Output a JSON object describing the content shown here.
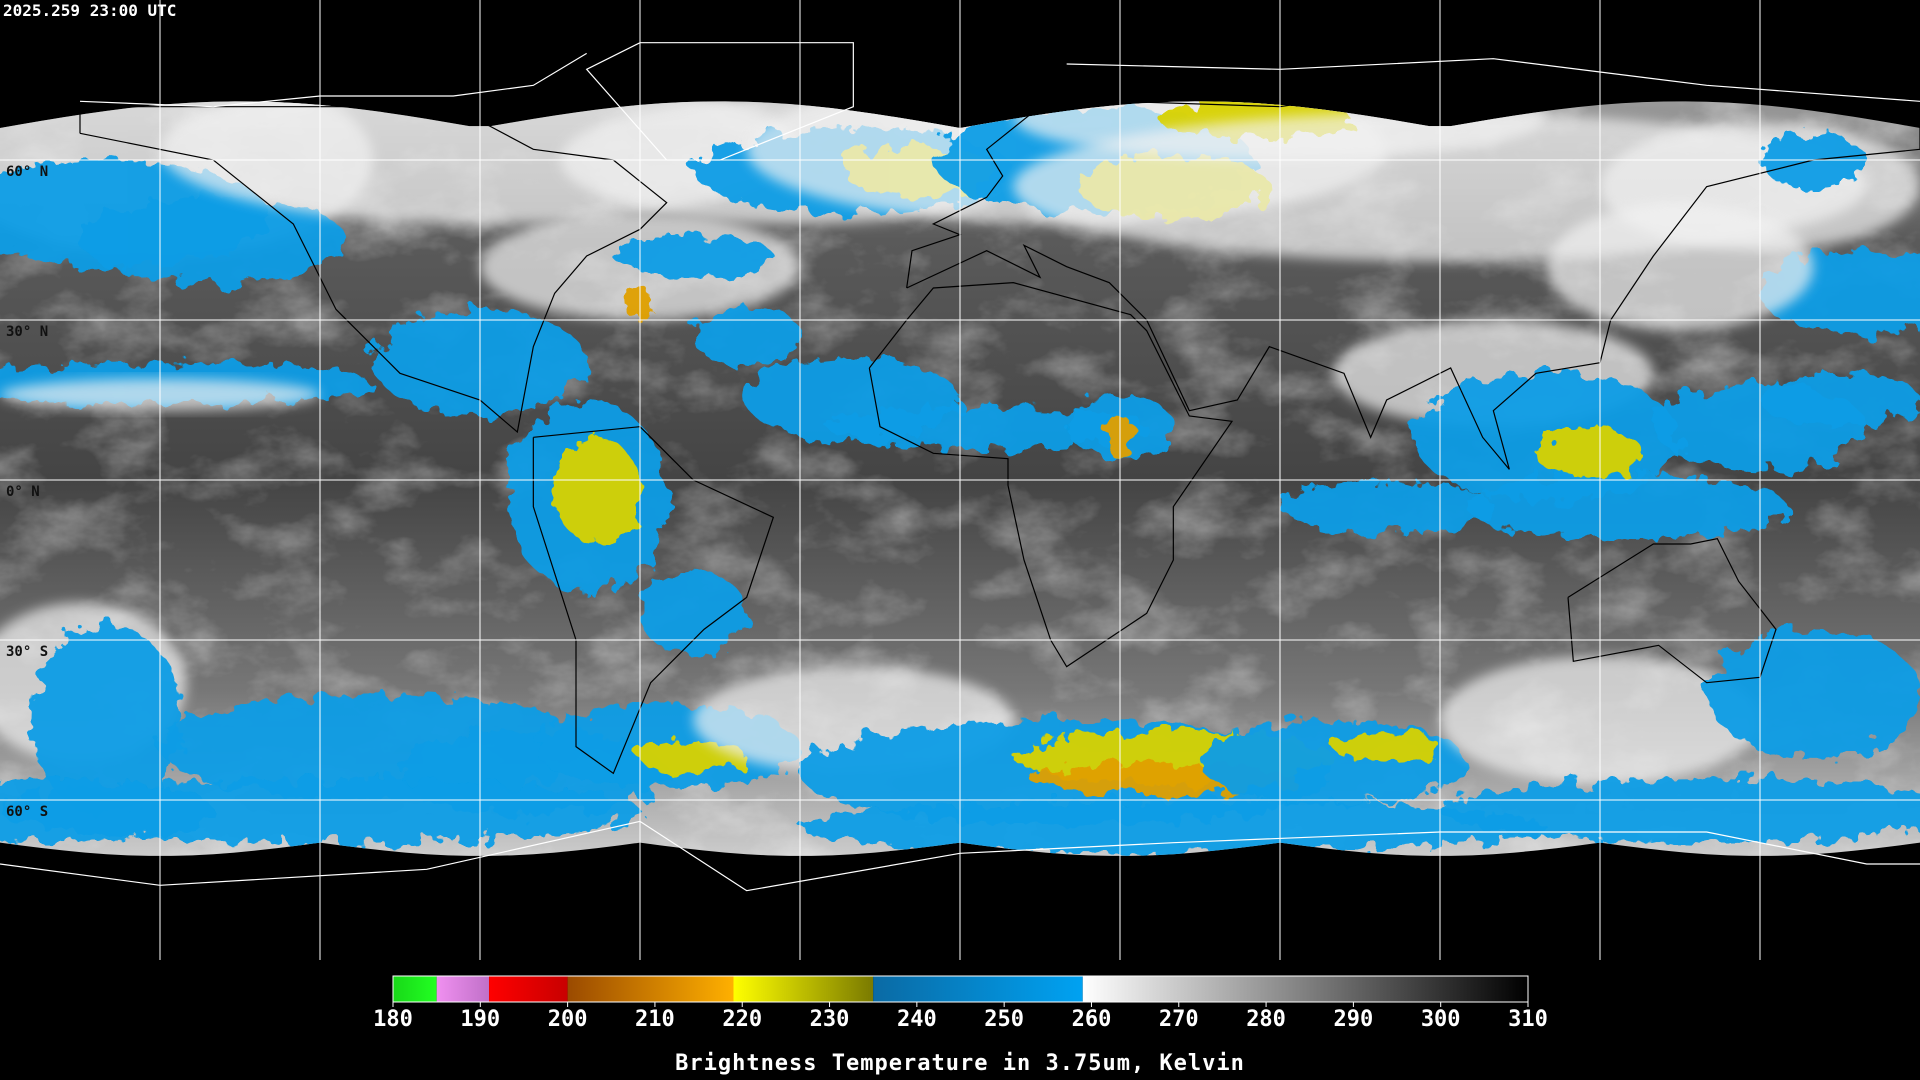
{
  "timestamp": "2025.259 23:00 UTC",
  "map": {
    "lat_labels": [
      "60° N",
      "30° N",
      "0° N",
      "30° S",
      "60° S"
    ]
  },
  "colorbar": {
    "lim": [
      180,
      310
    ],
    "ticks": [
      180,
      190,
      200,
      210,
      220,
      230,
      240,
      250,
      260,
      270,
      280,
      290,
      300,
      310
    ],
    "segments": [
      {
        "from": 180,
        "to": 185,
        "colors": [
          "#18d818",
          "#22ff22"
        ]
      },
      {
        "from": 185,
        "to": 191,
        "colors": [
          "#f090f0",
          "#c070c8"
        ]
      },
      {
        "from": 191,
        "to": 200,
        "colors": [
          "#ff0000",
          "#c80000"
        ]
      },
      {
        "from": 200,
        "to": 219,
        "colors": [
          "#9a4a00",
          "#ffb000"
        ]
      },
      {
        "from": 219,
        "to": 235,
        "colors": [
          "#ffff00",
          "#7a7a00"
        ]
      },
      {
        "from": 235,
        "to": 259,
        "colors": [
          "#0a6aa4",
          "#00a2f2"
        ]
      },
      {
        "from": 259,
        "to": 310,
        "colors": [
          "#ffffff",
          "#000000"
        ]
      }
    ],
    "label": "Brightness Temperature in 3.75um, Kelvin"
  }
}
